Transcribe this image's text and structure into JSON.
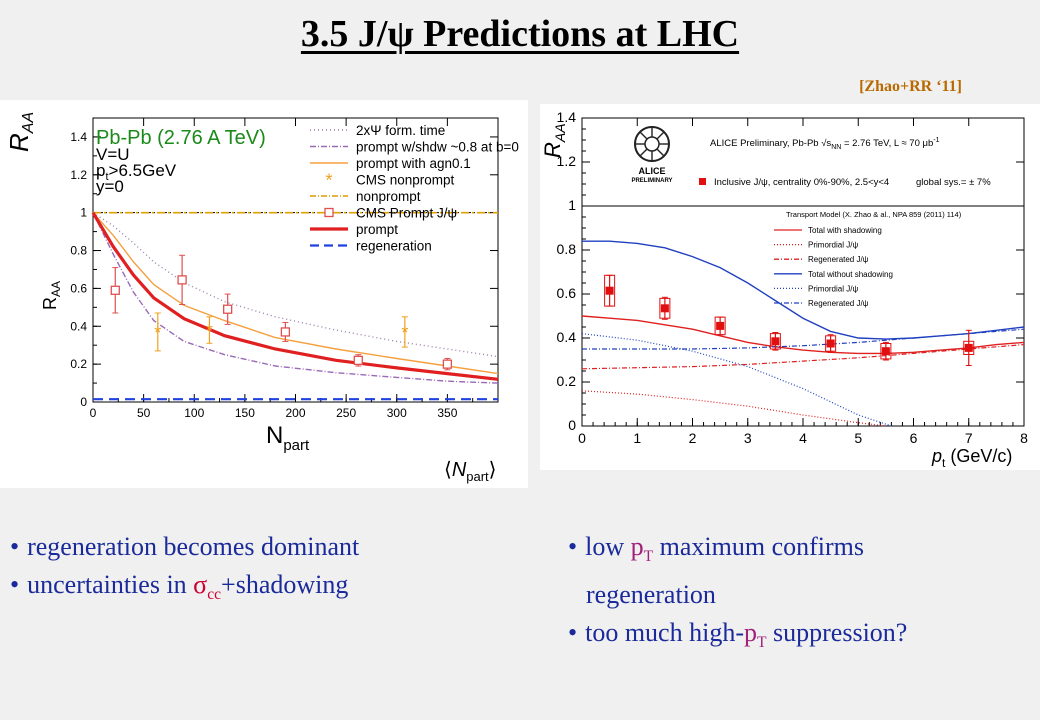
{
  "slide": {
    "title": "3.5  J/ψ Predictions at LHC",
    "citation": "[Zhao+RR ‘11]"
  },
  "bullets_left": [
    {
      "text": "regeneration  becomes  dominant"
    },
    {
      "pre": "uncertainties  in  ",
      "sigma": "σ",
      "sub": "cc",
      "post": "+shadowing"
    }
  ],
  "bullets_right": [
    {
      "pre": "low ",
      "p": "p",
      "sub": "T",
      "post": " maximum confirms",
      "line2": "regeneration"
    },
    {
      "pre": "too much high-",
      "p": "p",
      "sub": "T",
      "post": " suppression?"
    }
  ],
  "chart_data": [
    {
      "type": "line",
      "ylabel_outer": "R",
      "ylabel_outer_sub": "AA",
      "ylabel_inner": "R",
      "ylabel_inner_sub": "AA",
      "xlabel": "N",
      "xlabel_sub": "part",
      "xlabel_outer": "N",
      "xlabel_outer_sub": "part",
      "xlim": [
        0,
        400
      ],
      "ylim": [
        0,
        1.5
      ],
      "xticks": [
        "0",
        "50",
        "100",
        "150",
        "200",
        "250",
        "300",
        "350"
      ],
      "yticks": [
        "0",
        "0.2",
        "0.4",
        "0.6",
        "0.8",
        "1",
        "1.2",
        "1.4"
      ],
      "annotations": [
        "Pb-Pb (2.76 A TeV)",
        "V=U",
        "p",
        "t",
        ">6.5GeV",
        "y=0"
      ],
      "legend": [
        {
          "label": "2xΨ form. time",
          "color": "#9a7fb0",
          "style": "dotted"
        },
        {
          "label": "prompt w/shdw ~0.8 at b=0",
          "color": "#9a6ab8",
          "style": "dashdot"
        },
        {
          "label": "prompt with agn0.1",
          "color": "#f5a040",
          "style": "solid"
        },
        {
          "label": "CMS nonprompt",
          "color": "#f0a020",
          "style": "star"
        },
        {
          "label": "nonprompt",
          "color": "#e09a00",
          "style": "dashdot"
        },
        {
          "label": "CMS Prompt J/ψ",
          "color": "#e05050",
          "style": "square"
        },
        {
          "label": "prompt",
          "color": "#e02020",
          "style": "thick"
        },
        {
          "label": "regeneration",
          "color": "#2040e0",
          "style": "dashed"
        }
      ],
      "series": [
        {
          "name": "2xΨ form. time",
          "color": "#9a7fb0",
          "dash": "1 3",
          "width": 1.4,
          "x": [
            0,
            20,
            40,
            60,
            90,
            130,
            180,
            240,
            300,
            350,
            400
          ],
          "y": [
            1.0,
            0.93,
            0.84,
            0.74,
            0.63,
            0.53,
            0.45,
            0.38,
            0.32,
            0.28,
            0.24
          ]
        },
        {
          "name": "prompt w/shdw ~0.8 at b=0",
          "color": "#9a6ab8",
          "dash": "6 2 1 2",
          "width": 1.4,
          "x": [
            0,
            20,
            40,
            60,
            90,
            130,
            180,
            240,
            300,
            350,
            400
          ],
          "y": [
            1.0,
            0.78,
            0.58,
            0.43,
            0.32,
            0.25,
            0.19,
            0.155,
            0.13,
            0.11,
            0.1
          ]
        },
        {
          "name": "prompt with agn0.1",
          "color": "#f5a040",
          "dash": "",
          "width": 1.4,
          "x": [
            0,
            20,
            40,
            60,
            90,
            130,
            180,
            240,
            300,
            350,
            400
          ],
          "y": [
            1.0,
            0.88,
            0.74,
            0.62,
            0.51,
            0.43,
            0.34,
            0.28,
            0.23,
            0.19,
            0.15
          ]
        },
        {
          "name": "nonprompt",
          "color": "#e0a000",
          "dash": "8 3 2 3",
          "width": 1.6,
          "x": [
            0,
            400
          ],
          "y": [
            1.0,
            1.0
          ]
        },
        {
          "name": "prompt",
          "color": "#e02020",
          "dash": "",
          "width": 3.2,
          "x": [
            0,
            20,
            40,
            60,
            90,
            130,
            180,
            240,
            300,
            350,
            400
          ],
          "y": [
            1.0,
            0.82,
            0.67,
            0.55,
            0.44,
            0.35,
            0.28,
            0.22,
            0.18,
            0.15,
            0.12
          ]
        },
        {
          "name": "regeneration",
          "color": "#2040e0",
          "dash": "10 6",
          "width": 2.2,
          "x": [
            0,
            400
          ],
          "y": [
            0.015,
            0.015
          ]
        }
      ],
      "points": [
        {
          "name": "CMS Prompt J/ψ",
          "marker": "square",
          "color": "#e05050",
          "x": [
            22,
            88,
            133,
            190,
            262,
            350
          ],
          "y": [
            0.59,
            0.645,
            0.49,
            0.37,
            0.22,
            0.2
          ],
          "err": [
            0.12,
            0.13,
            0.08,
            0.05,
            0.03,
            0.03
          ]
        },
        {
          "name": "CMS nonprompt",
          "marker": "star",
          "color": "#f0a020",
          "x": [
            64,
            115,
            308
          ],
          "y": [
            0.37,
            0.38,
            0.37
          ],
          "err": [
            0.1,
            0.07,
            0.08
          ]
        }
      ]
    },
    {
      "type": "line",
      "ylabel": "R",
      "ylabel_sub": "AA",
      "xlabel_p": "p",
      "xlabel_sub": "t",
      "xlabel_rest": " (GeV/c)",
      "xlim": [
        0,
        8
      ],
      "ylim": [
        0,
        1.4
      ],
      "xticks": [
        "0",
        "1",
        "2",
        "3",
        "4",
        "5",
        "6",
        "7",
        "8"
      ],
      "yticks": [
        "0",
        "0.2",
        "0.4",
        "0.6",
        "0.8",
        "1",
        "1.2",
        "1.4"
      ],
      "header": "ALICE Preliminary, Pb-Pb √s",
      "header_sub": "NN",
      "header_rest": " = 2.76 TeV, L ≈ 70 μb",
      "header_sup": "-1",
      "logo_text": [
        "ALICE",
        "PRELIMINARY"
      ],
      "data_legend": "Inclusive J/ψ, centrality 0%-90%, 2.5<y<4",
      "global_sys": "global sys.= ± 7%",
      "model_title": "Transport Model (X. Zhao & al., NPA 859 (2011) 114)",
      "legend": [
        {
          "label": "Total with shadowing",
          "color": "#e02020",
          "style": "solid"
        },
        {
          "label": "Primordial J/ψ",
          "color": "#e02020",
          "style": "dotted"
        },
        {
          "label": "Regenerated J/ψ",
          "color": "#e02020",
          "style": "dashdot"
        },
        {
          "label": "Total without shadowing",
          "color": "#2040c0",
          "style": "solid"
        },
        {
          "label": "Primordial J/ψ",
          "color": "#2040c0",
          "style": "dotted"
        },
        {
          "label": "Regenerated J/ψ",
          "color": "#2040c0",
          "style": "dashdot"
        }
      ],
      "series": [
        {
          "name": "Total with shadowing",
          "color": "#e02020",
          "dash": "",
          "width": 1.4,
          "x": [
            0,
            0.5,
            1,
            1.5,
            2,
            2.5,
            3,
            3.5,
            4,
            4.5,
            5,
            5.5,
            6,
            6.5,
            7,
            7.5,
            8
          ],
          "y": [
            0.5,
            0.49,
            0.48,
            0.46,
            0.44,
            0.41,
            0.38,
            0.36,
            0.345,
            0.335,
            0.33,
            0.33,
            0.335,
            0.345,
            0.355,
            0.37,
            0.38
          ]
        },
        {
          "name": "Primordial J/ψ",
          "color": "#e02020",
          "dash": "1 2",
          "width": 1.2,
          "x": [
            0,
            1,
            2,
            3,
            4,
            5,
            5.5
          ],
          "y": [
            0.16,
            0.145,
            0.12,
            0.09,
            0.05,
            0.015,
            0.0
          ]
        },
        {
          "name": "Regenerated J/ψ",
          "color": "#e02020",
          "dash": "5 2 1 2",
          "width": 1.2,
          "x": [
            0,
            1,
            2,
            3,
            4,
            5,
            6,
            7,
            8
          ],
          "y": [
            0.26,
            0.265,
            0.27,
            0.28,
            0.295,
            0.31,
            0.33,
            0.35,
            0.37
          ]
        },
        {
          "name": "Total without shadowing",
          "color": "#2040c0",
          "dash": "",
          "width": 1.4,
          "x": [
            0,
            0.5,
            1,
            1.5,
            2,
            2.5,
            3,
            3.5,
            4,
            4.5,
            5,
            5.5,
            6,
            6.5,
            7,
            7.5,
            8
          ],
          "y": [
            0.84,
            0.84,
            0.83,
            0.81,
            0.77,
            0.72,
            0.65,
            0.57,
            0.49,
            0.43,
            0.4,
            0.395,
            0.4,
            0.41,
            0.42,
            0.435,
            0.45
          ]
        },
        {
          "name": "Primordial J/ψ",
          "color": "#2040c0",
          "dash": "1 2",
          "width": 1.2,
          "x": [
            0,
            1,
            2,
            3,
            4,
            5,
            5.6
          ],
          "y": [
            0.42,
            0.39,
            0.34,
            0.27,
            0.17,
            0.05,
            0.0
          ]
        },
        {
          "name": "Regenerated J/ψ",
          "color": "#2040c0",
          "dash": "5 2 1 2",
          "width": 1.2,
          "x": [
            0,
            1,
            2,
            3,
            4,
            5,
            6,
            7,
            8
          ],
          "y": [
            0.35,
            0.35,
            0.35,
            0.355,
            0.365,
            0.38,
            0.4,
            0.42,
            0.44
          ]
        }
      ],
      "points": [
        {
          "name": "Inclusive J/ψ",
          "marker": "filled-square",
          "color": "#e01010",
          "x": [
            0.5,
            1.5,
            2.5,
            3.5,
            4.5,
            5.5,
            7.0
          ],
          "y": [
            0.615,
            0.535,
            0.455,
            0.385,
            0.375,
            0.34,
            0.355
          ],
          "err": [
            0.07,
            0.05,
            0.04,
            0.04,
            0.04,
            0.04,
            0.08
          ],
          "sys": [
            0.07,
            0.045,
            0.04,
            0.035,
            0.035,
            0.035,
            0.03
          ]
        }
      ]
    }
  ]
}
